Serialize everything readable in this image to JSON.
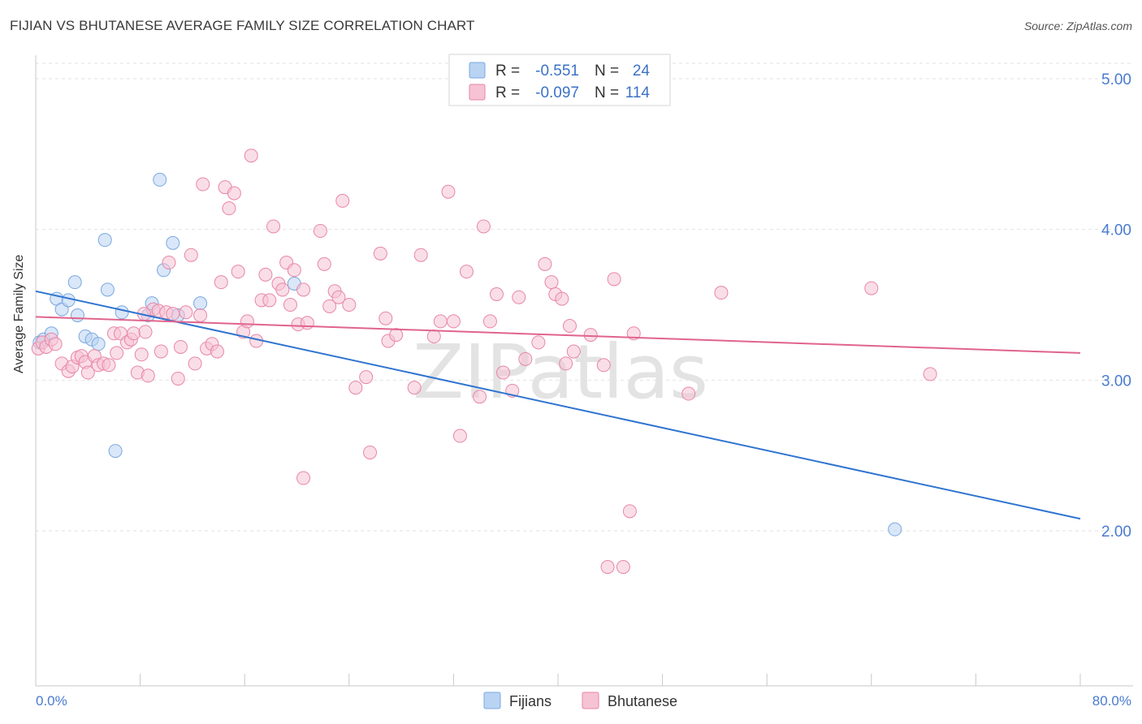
{
  "chart_data": {
    "type": "scatter",
    "title": "FIJIAN VS BHUTANESE AVERAGE FAMILY SIZE CORRELATION CHART",
    "source": "Source: ZipAtlas.com",
    "xlabel": "",
    "ylabel": "Average Family Size",
    "xlim": [
      0,
      80
    ],
    "ylim": [
      1.0,
      5.1
    ],
    "x_tick_labels": [
      "0.0%",
      "80.0%"
    ],
    "y_ticks": [
      2.0,
      3.0,
      4.0,
      5.0
    ],
    "y_tick_labels": [
      "2.00",
      "3.00",
      "4.00",
      "5.00"
    ],
    "grid": true,
    "watermark": "ZIPatlas",
    "legend": {
      "r_label": "R =",
      "n_label": "N =",
      "entries": [
        {
          "name": "Fijians",
          "r": "-0.551",
          "n": "24",
          "color": "#7aa8e0",
          "fill": "#b9d3f3"
        },
        {
          "name": "Bhutanese",
          "r": "-0.097",
          "n": "114",
          "color": "#e886a6",
          "fill": "#f6c3d4"
        }
      ]
    },
    "series": [
      {
        "name": "Fijians",
        "color": "#7aa8e0",
        "fill": "#b9d3f3",
        "trend": {
          "color": "#2f74d0",
          "x": [
            0,
            80
          ],
          "y": [
            3.59,
            2.08
          ]
        },
        "points": [
          [
            0.3,
            3.25
          ],
          [
            0.6,
            3.27
          ],
          [
            1.2,
            3.31
          ],
          [
            1.6,
            3.54
          ],
          [
            2.0,
            3.47
          ],
          [
            2.5,
            3.53
          ],
          [
            3.0,
            3.65
          ],
          [
            3.2,
            3.43
          ],
          [
            3.8,
            3.29
          ],
          [
            4.3,
            3.27
          ],
          [
            4.8,
            3.24
          ],
          [
            5.3,
            3.93
          ],
          [
            5.5,
            3.6
          ],
          [
            6.1,
            2.53
          ],
          [
            6.6,
            3.45
          ],
          [
            8.6,
            3.43
          ],
          [
            8.9,
            3.51
          ],
          [
            9.5,
            4.33
          ],
          [
            9.8,
            3.73
          ],
          [
            10.5,
            3.91
          ],
          [
            10.9,
            3.43
          ],
          [
            12.6,
            3.51
          ],
          [
            19.8,
            3.64
          ],
          [
            65.8,
            2.01
          ]
        ]
      },
      {
        "name": "Bhutanese",
        "color": "#e886a6",
        "fill": "#f6c3d4",
        "trend": {
          "color": "#e0648d",
          "x": [
            0,
            80
          ],
          "y": [
            3.42,
            3.18
          ]
        },
        "points": [
          [
            0.2,
            3.21
          ],
          [
            0.5,
            3.25
          ],
          [
            0.8,
            3.22
          ],
          [
            1.2,
            3.27
          ],
          [
            1.5,
            3.24
          ],
          [
            2.0,
            3.11
          ],
          [
            2.5,
            3.06
          ],
          [
            2.8,
            3.09
          ],
          [
            3.2,
            3.15
          ],
          [
            3.5,
            3.16
          ],
          [
            3.8,
            3.12
          ],
          [
            4.0,
            3.05
          ],
          [
            4.5,
            3.16
          ],
          [
            4.8,
            3.1
          ],
          [
            5.2,
            3.11
          ],
          [
            5.6,
            3.1
          ],
          [
            6.0,
            3.31
          ],
          [
            6.5,
            3.31
          ],
          [
            7.0,
            3.25
          ],
          [
            7.3,
            3.27
          ],
          [
            7.5,
            3.31
          ],
          [
            7.8,
            3.05
          ],
          [
            8.1,
            3.17
          ],
          [
            8.4,
            3.32
          ],
          [
            8.6,
            3.03
          ],
          [
            9.0,
            3.47
          ],
          [
            9.4,
            3.46
          ],
          [
            9.6,
            3.19
          ],
          [
            10.0,
            3.45
          ],
          [
            10.2,
            3.78
          ],
          [
            10.5,
            3.44
          ],
          [
            10.9,
            3.01
          ],
          [
            11.1,
            3.22
          ],
          [
            11.5,
            3.45
          ],
          [
            11.9,
            3.83
          ],
          [
            12.2,
            3.11
          ],
          [
            12.6,
            3.43
          ],
          [
            12.8,
            4.3
          ],
          [
            13.1,
            3.21
          ],
          [
            13.5,
            3.24
          ],
          [
            13.9,
            3.19
          ],
          [
            14.2,
            3.65
          ],
          [
            14.5,
            4.28
          ],
          [
            14.8,
            4.14
          ],
          [
            15.2,
            4.24
          ],
          [
            15.5,
            3.72
          ],
          [
            15.9,
            3.32
          ],
          [
            16.2,
            3.39
          ],
          [
            16.5,
            4.49
          ],
          [
            16.9,
            3.26
          ],
          [
            17.3,
            3.53
          ],
          [
            17.6,
            3.7
          ],
          [
            17.9,
            3.53
          ],
          [
            18.2,
            4.02
          ],
          [
            18.6,
            3.64
          ],
          [
            18.9,
            3.6
          ],
          [
            19.2,
            3.78
          ],
          [
            19.5,
            3.5
          ],
          [
            19.8,
            3.73
          ],
          [
            20.1,
            3.37
          ],
          [
            20.5,
            3.6
          ],
          [
            20.8,
            3.38
          ],
          [
            21.8,
            3.99
          ],
          [
            22.1,
            3.77
          ],
          [
            22.5,
            3.49
          ],
          [
            22.9,
            3.59
          ],
          [
            23.2,
            3.55
          ],
          [
            23.5,
            4.19
          ],
          [
            24.0,
            3.5
          ],
          [
            24.5,
            2.95
          ],
          [
            25.3,
            3.02
          ],
          [
            25.6,
            2.52
          ],
          [
            26.4,
            3.84
          ],
          [
            26.8,
            3.41
          ],
          [
            27.0,
            3.26
          ],
          [
            27.6,
            3.3
          ],
          [
            29.0,
            2.95
          ],
          [
            29.5,
            3.83
          ],
          [
            30.5,
            3.29
          ],
          [
            31.0,
            3.39
          ],
          [
            31.6,
            4.25
          ],
          [
            32.0,
            3.39
          ],
          [
            32.5,
            2.63
          ],
          [
            33.0,
            3.72
          ],
          [
            34.0,
            2.89
          ],
          [
            34.3,
            4.02
          ],
          [
            34.8,
            3.39
          ],
          [
            35.3,
            3.57
          ],
          [
            35.8,
            3.05
          ],
          [
            36.5,
            2.93
          ],
          [
            37.0,
            3.55
          ],
          [
            37.5,
            3.14
          ],
          [
            38.5,
            3.25
          ],
          [
            39.0,
            3.77
          ],
          [
            39.5,
            3.65
          ],
          [
            39.8,
            3.57
          ],
          [
            40.3,
            3.54
          ],
          [
            40.6,
            3.11
          ],
          [
            40.9,
            3.36
          ],
          [
            41.2,
            3.19
          ],
          [
            42.5,
            3.3
          ],
          [
            43.5,
            3.1
          ],
          [
            43.8,
            1.76
          ],
          [
            44.3,
            3.67
          ],
          [
            45.0,
            1.76
          ],
          [
            45.5,
            2.13
          ],
          [
            45.8,
            3.31
          ],
          [
            50.0,
            2.91
          ],
          [
            52.5,
            3.58
          ],
          [
            64.0,
            3.61
          ],
          [
            68.5,
            3.04
          ],
          [
            20.5,
            2.35
          ],
          [
            8.3,
            3.44
          ],
          [
            6.2,
            3.18
          ]
        ]
      }
    ]
  }
}
